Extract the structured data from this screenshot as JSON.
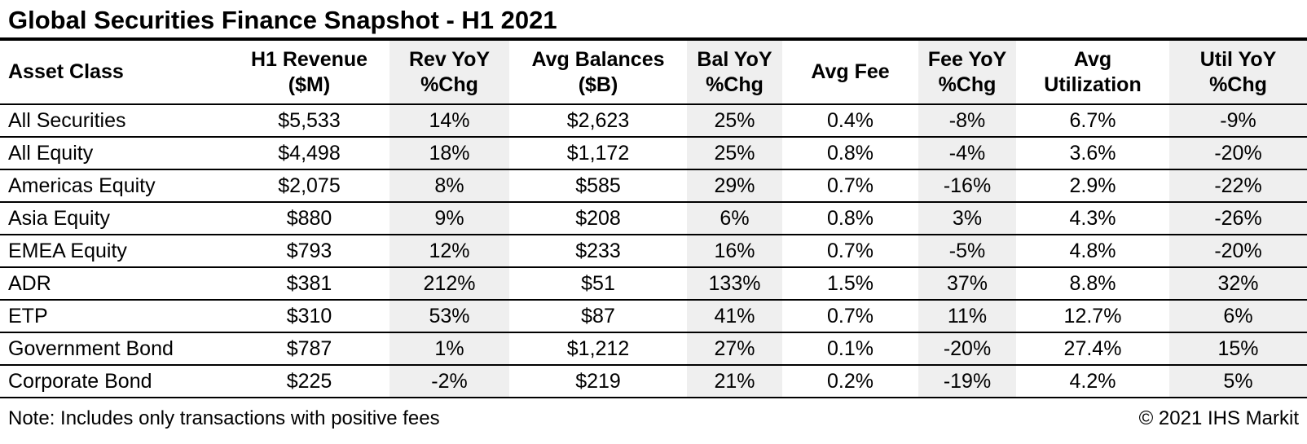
{
  "title": "Global Securities Finance Snapshot - H1 2021",
  "colors": {
    "shaded_column_bg": "#efefef",
    "border": "#000000",
    "text": "#000000",
    "background": "#ffffff"
  },
  "chart_data": {
    "type": "table",
    "title": "Global Securities Finance Snapshot - H1 2021",
    "columns": [
      {
        "id": "asset-class",
        "label": "Asset Class",
        "header_lines": [
          "Asset Class"
        ],
        "align": "left",
        "shaded": false
      },
      {
        "id": "h1-revenue",
        "label": "H1 Revenue ($M)",
        "header_lines": [
          "H1 Revenue",
          "($M)"
        ],
        "align": "center",
        "shaded": false
      },
      {
        "id": "rev-yoy",
        "label": "Rev YoY %Chg",
        "header_lines": [
          "Rev YoY",
          "%Chg"
        ],
        "align": "center",
        "shaded": true
      },
      {
        "id": "avg-balances",
        "label": "Avg Balances ($B)",
        "header_lines": [
          "Avg Balances",
          "($B)"
        ],
        "align": "center",
        "shaded": false
      },
      {
        "id": "bal-yoy",
        "label": "Bal YoY %Chg",
        "header_lines": [
          "Bal YoY",
          "%Chg"
        ],
        "align": "center",
        "shaded": true
      },
      {
        "id": "avg-fee",
        "label": "Avg Fee",
        "header_lines": [
          "Avg Fee"
        ],
        "align": "center",
        "shaded": false
      },
      {
        "id": "fee-yoy",
        "label": "Fee YoY %Chg",
        "header_lines": [
          "Fee YoY",
          "%Chg"
        ],
        "align": "center",
        "shaded": true
      },
      {
        "id": "avg-utilization",
        "label": "Avg Utilization",
        "header_lines": [
          "Avg",
          "Utilization"
        ],
        "align": "center",
        "shaded": false
      },
      {
        "id": "util-yoy",
        "label": "Util YoY %Chg",
        "header_lines": [
          "Util YoY",
          "%Chg"
        ],
        "align": "center",
        "shaded": true
      }
    ],
    "rows": [
      [
        "All Securities",
        "$5,533",
        "14%",
        "$2,623",
        "25%",
        "0.4%",
        "-8%",
        "6.7%",
        "-9%"
      ],
      [
        "All Equity",
        "$4,498",
        "18%",
        "$1,172",
        "25%",
        "0.8%",
        "-4%",
        "3.6%",
        "-20%"
      ],
      [
        "Americas Equity",
        "$2,075",
        "8%",
        "$585",
        "29%",
        "0.7%",
        "-16%",
        "2.9%",
        "-22%"
      ],
      [
        "Asia Equity",
        "$880",
        "9%",
        "$208",
        "6%",
        "0.8%",
        "3%",
        "4.3%",
        "-26%"
      ],
      [
        "EMEA Equity",
        "$793",
        "12%",
        "$233",
        "16%",
        "0.7%",
        "-5%",
        "4.8%",
        "-20%"
      ],
      [
        "ADR",
        "$381",
        "212%",
        "$51",
        "133%",
        "1.5%",
        "37%",
        "8.8%",
        "32%"
      ],
      [
        "ETP",
        "$310",
        "53%",
        "$87",
        "41%",
        "0.7%",
        "11%",
        "12.7%",
        "6%"
      ],
      [
        "Government Bond",
        "$787",
        "1%",
        "$1,212",
        "27%",
        "0.1%",
        "-20%",
        "27.4%",
        "15%"
      ],
      [
        "Corporate Bond",
        "$225",
        "-2%",
        "$219",
        "21%",
        "0.2%",
        "-19%",
        "4.2%",
        "5%"
      ]
    ]
  },
  "footer": {
    "note": "Note: Includes only transactions with positive fees",
    "copyright": "© 2021 IHS Markit"
  }
}
